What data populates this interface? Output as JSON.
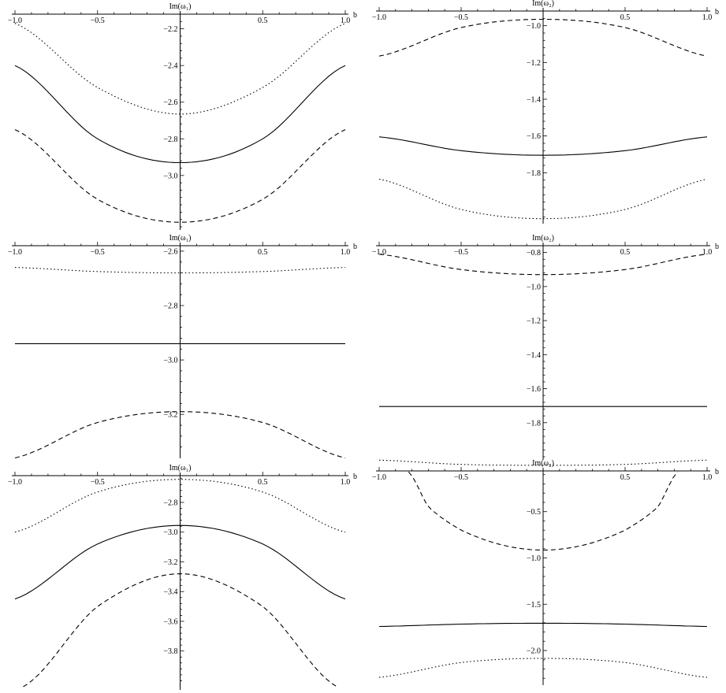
{
  "chart_data": [
    {
      "type": "line",
      "ylabel": "Im(ω₁)",
      "xlabel": "b",
      "xlim": [
        -1.0,
        1.0
      ],
      "ylim": [
        -3.28,
        -2.12
      ],
      "x_ticks": [
        -1.0,
        -0.5,
        0.5,
        1.0
      ],
      "x_tick_labels": [
        "-1.0",
        "-0.5",
        "0.5",
        "1.0"
      ],
      "y_ticks": [
        -2.2,
        -2.4,
        -2.6,
        -2.8,
        -3.0
      ],
      "y_tick_labels": [
        "-2.2",
        "-2.4",
        "-2.6",
        "-2.8",
        "-3.0"
      ],
      "series": [
        {
          "style": "solid",
          "x": [
            -1.0,
            -0.5,
            0.0,
            0.5,
            1.0
          ],
          "y": [
            -2.4,
            -2.8,
            -2.93,
            -2.8,
            -2.4
          ]
        },
        {
          "style": "dotted",
          "x": [
            -1.0,
            -0.5,
            0.0,
            0.5,
            1.0
          ],
          "y": [
            -2.17,
            -2.52,
            -2.665,
            -2.52,
            -2.17
          ]
        },
        {
          "style": "dashed",
          "x": [
            -1.0,
            -0.5,
            0.0,
            0.5,
            1.0
          ],
          "y": [
            -2.75,
            -3.13,
            -3.255,
            -3.13,
            -2.75
          ]
        }
      ]
    },
    {
      "type": "line",
      "ylabel": "Im(ω₂)",
      "xlabel": "b",
      "xlim": [
        -1.0,
        1.0
      ],
      "ylim": [
        -2.06,
        -0.92
      ],
      "x_ticks": [
        -1.0,
        -0.5,
        0.5,
        1.0
      ],
      "x_tick_labels": [
        "-1.0",
        "-0.5",
        "0.5",
        "1.0"
      ],
      "y_ticks": [
        -1.0,
        -1.2,
        -1.4,
        -1.6,
        -1.8
      ],
      "y_tick_labels": [
        "-1.0",
        "-1.2",
        "-1.4",
        "-1.6",
        "-1.8"
      ],
      "series": [
        {
          "style": "solid",
          "x": [
            -1.0,
            -0.5,
            0.0,
            0.5,
            1.0
          ],
          "y": [
            -1.605,
            -1.68,
            -1.705,
            -1.68,
            -1.605
          ]
        },
        {
          "style": "dashed",
          "x": [
            -1.0,
            -0.5,
            0.0,
            0.5,
            1.0
          ],
          "y": [
            -1.165,
            -1.01,
            -0.965,
            -1.01,
            -1.165
          ]
        },
        {
          "style": "dotted",
          "x": [
            -1.0,
            -0.5,
            0.0,
            0.5,
            1.0
          ],
          "y": [
            -1.835,
            -2.0,
            -2.05,
            -2.0,
            -1.835
          ]
        }
      ]
    },
    {
      "type": "line",
      "ylabel": "Im(ω₁)",
      "xlabel": "b",
      "xlim": [
        -1.0,
        1.0
      ],
      "ylim": [
        -3.35,
        -2.58
      ],
      "x_ticks": [
        -1.0,
        -0.5,
        0.5,
        1.0
      ],
      "x_tick_labels": [
        "-1.0",
        "-0.5",
        "0.5",
        "1.0"
      ],
      "y_ticks": [
        -2.6,
        -2.8,
        -3.0,
        -3.2
      ],
      "y_tick_labels": [
        "-2.6",
        "-2.8",
        "-3.0",
        "-3.2"
      ],
      "series": [
        {
          "style": "solid",
          "x": [
            -1.0,
            0.0,
            1.0
          ],
          "y": [
            -2.94,
            -2.94,
            -2.94
          ]
        },
        {
          "style": "dotted",
          "x": [
            -1.0,
            -0.5,
            0.0,
            0.5,
            1.0
          ],
          "y": [
            -2.66,
            -2.675,
            -2.68,
            -2.675,
            -2.66
          ]
        },
        {
          "style": "dashed",
          "x": [
            -1.0,
            -0.5,
            0.0,
            0.5,
            1.0
          ],
          "y": [
            -3.36,
            -3.23,
            -3.19,
            -3.23,
            -3.36
          ]
        }
      ]
    },
    {
      "type": "line",
      "ylabel": "Im(ω₂)",
      "xlabel": "b",
      "xlim": [
        -1.0,
        1.0
      ],
      "ylim": [
        -2.0,
        -0.76
      ],
      "x_ticks": [
        -1.0,
        -0.5,
        0.5,
        1.0
      ],
      "x_tick_labels": [
        "-1.0",
        "-0.5",
        "0.5",
        "1.0"
      ],
      "y_ticks": [
        -0.8,
        -1.0,
        -1.2,
        -1.4,
        -1.6,
        -1.8
      ],
      "y_tick_labels": [
        "-0.8",
        "-1.0",
        "-1.2",
        "-1.4",
        "-1.6",
        "-1.8"
      ],
      "series": [
        {
          "style": "solid",
          "x": [
            -1.0,
            0.0,
            1.0
          ],
          "y": [
            -1.705,
            -1.705,
            -1.705
          ]
        },
        {
          "style": "dashed",
          "x": [
            -1.0,
            -0.5,
            0.0,
            0.5,
            1.0
          ],
          "y": [
            -0.81,
            -0.9,
            -0.93,
            -0.9,
            -0.81
          ]
        },
        {
          "style": "dotted",
          "x": [
            -1.0,
            -0.5,
            0.0,
            0.5,
            1.0
          ],
          "y": [
            -2.02,
            -2.045,
            -2.05,
            -2.045,
            -2.02
          ]
        }
      ]
    },
    {
      "type": "line",
      "ylabel": "Im(ω₁)",
      "xlabel": "b",
      "xlim": [
        -1.0,
        1.0
      ],
      "ylim": [
        -4.04,
        -2.62
      ],
      "x_ticks": [
        -1.0,
        -0.5,
        0.5,
        1.0
      ],
      "x_tick_labels": [
        "-1.0",
        "-0.5",
        "0.5",
        "1.0"
      ],
      "y_ticks": [
        -2.8,
        -3.0,
        -3.2,
        -3.4,
        -3.6,
        -3.8
      ],
      "y_tick_labels": [
        "-2.8",
        "-3.0",
        "-3.2",
        "-3.4",
        "-3.6",
        "-3.8"
      ],
      "series": [
        {
          "style": "solid",
          "x": [
            -1.0,
            -0.5,
            0.0,
            0.5,
            1.0
          ],
          "y": [
            -3.45,
            -3.08,
            -2.955,
            -3.08,
            -3.45
          ]
        },
        {
          "style": "dotted",
          "x": [
            -1.0,
            -0.5,
            0.0,
            0.5,
            1.0
          ],
          "y": [
            -3.0,
            -2.73,
            -2.645,
            -2.73,
            -3.0
          ]
        },
        {
          "style": "dashed",
          "x": [
            -0.95,
            -0.5,
            0.0,
            0.5,
            0.95
          ],
          "y": [
            -4.04,
            -3.5,
            -3.28,
            -3.5,
            -4.04
          ]
        }
      ]
    },
    {
      "type": "line",
      "ylabel": "Im(ω₂)",
      "xlabel": "b",
      "xlim": [
        -1.0,
        1.0
      ],
      "ylim": [
        -2.34,
        -0.06
      ],
      "x_ticks": [
        -1.0,
        -0.5,
        0.5,
        1.0
      ],
      "x_tick_labels": [
        "-1.0",
        "-0.5",
        "0.5",
        "1.0"
      ],
      "y_ticks": [
        -0.5,
        -1.0,
        -1.5,
        -2.0
      ],
      "y_tick_labels": [
        "-0.5",
        "-1.0",
        "-1.5",
        "-2.0"
      ],
      "series": [
        {
          "style": "solid",
          "x": [
            -1.0,
            -0.5,
            0.0,
            0.5,
            1.0
          ],
          "y": [
            -1.74,
            -1.715,
            -1.705,
            -1.715,
            -1.74
          ]
        },
        {
          "style": "dotted",
          "x": [
            -1.0,
            -0.5,
            0.0,
            0.5,
            1.0
          ],
          "y": [
            -2.29,
            -2.13,
            -2.085,
            -2.13,
            -2.29
          ]
        },
        {
          "style": "dashed",
          "x": [
            -0.82,
            -0.7,
            -0.5,
            -0.25,
            0.0,
            0.25,
            0.5,
            0.7,
            0.82
          ],
          "y": [
            -0.07,
            -0.45,
            -0.7,
            -0.86,
            -0.915,
            -0.86,
            -0.7,
            -0.45,
            -0.07
          ]
        }
      ]
    }
  ]
}
